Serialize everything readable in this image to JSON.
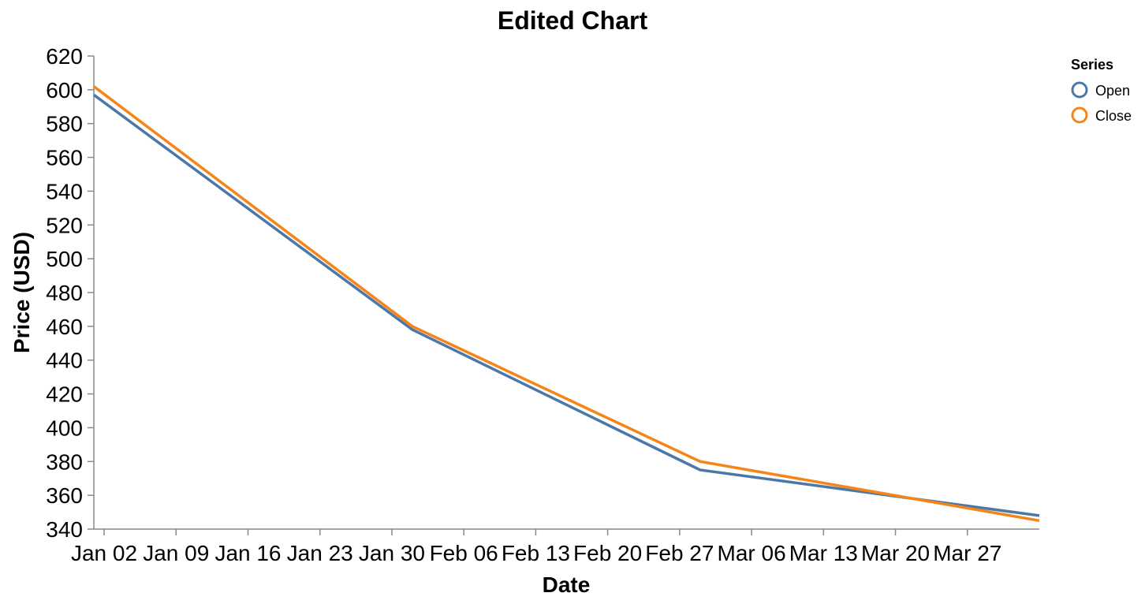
{
  "chart_data": {
    "type": "line",
    "title": "Edited Chart",
    "xlabel": "Date",
    "ylabel": "Price (USD)",
    "x_domain": [
      "2023-01-01",
      "2023-04-03"
    ],
    "ylim": [
      340,
      620
    ],
    "yticks": [
      340,
      360,
      380,
      400,
      420,
      440,
      460,
      480,
      500,
      520,
      540,
      560,
      580,
      600,
      620
    ],
    "xticks": [
      {
        "date": "2023-01-02",
        "label": "Jan 02"
      },
      {
        "date": "2023-01-09",
        "label": "Jan 09"
      },
      {
        "date": "2023-01-16",
        "label": "Jan 16"
      },
      {
        "date": "2023-01-23",
        "label": "Jan 23"
      },
      {
        "date": "2023-01-30",
        "label": "Jan 30"
      },
      {
        "date": "2023-02-06",
        "label": "Feb 06"
      },
      {
        "date": "2023-02-13",
        "label": "Feb 13"
      },
      {
        "date": "2023-02-20",
        "label": "Feb 20"
      },
      {
        "date": "2023-02-27",
        "label": "Feb 27"
      },
      {
        "date": "2023-03-06",
        "label": "Mar 06"
      },
      {
        "date": "2023-03-13",
        "label": "Mar 13"
      },
      {
        "date": "2023-03-20",
        "label": "Mar 20"
      },
      {
        "date": "2023-03-27",
        "label": "Mar 27"
      }
    ],
    "legend": {
      "title": "Series",
      "position": "top-right"
    },
    "grid": false,
    "series": [
      {
        "name": "Open",
        "color": "#4c78a8",
        "points": [
          {
            "x": "2023-01-01",
            "y": 597
          },
          {
            "x": "2023-02-01",
            "y": 458
          },
          {
            "x": "2023-03-01",
            "y": 375
          },
          {
            "x": "2023-04-03",
            "y": 348
          }
        ]
      },
      {
        "name": "Close",
        "color": "#f58518",
        "points": [
          {
            "x": "2023-01-01",
            "y": 602
          },
          {
            "x": "2023-02-01",
            "y": 460
          },
          {
            "x": "2023-03-01",
            "y": 380
          },
          {
            "x": "2023-04-03",
            "y": 345
          }
        ]
      }
    ]
  }
}
